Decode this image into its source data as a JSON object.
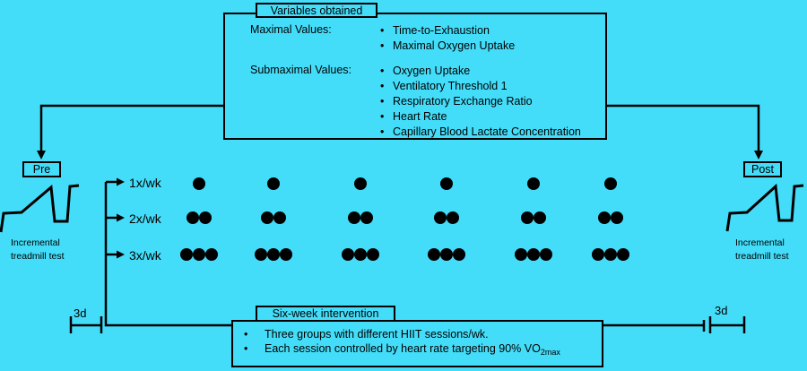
{
  "colors": {
    "background": "#44ddf9",
    "ink": "#000000"
  },
  "bullet_char": "•",
  "variables_box": {
    "title": "Variables obtained",
    "sections": [
      {
        "label": "Maximal Values:",
        "items": [
          "Time-to-Exhaustion",
          "Maximal Oxygen Uptake"
        ]
      },
      {
        "label": "Submaximal Values:",
        "items": [
          "Oxygen Uptake",
          "Ventilatory Threshold 1",
          "Respiratory Exchange Ratio",
          "Heart Rate",
          "Capillary Blood Lactate Concentration"
        ]
      }
    ]
  },
  "pre_label": "Pre",
  "post_label": "Post",
  "treadmill_caption": {
    "line1": "Incremental",
    "line2": "treadmill test"
  },
  "schedule": {
    "weeks": 6,
    "rows": [
      {
        "label": "1x/wk",
        "sessions_per_week": 1
      },
      {
        "label": "2x/wk",
        "sessions_per_week": 2
      },
      {
        "label": "3x/wk",
        "sessions_per_week": 3
      }
    ]
  },
  "intervention_box": {
    "title": "Six-week intervention",
    "bullet1": "Three groups with different HIIT sessions/wk.",
    "bullet2_main": "Each session controlled by heart rate targeting 90% VO",
    "bullet2_sub": "2max"
  },
  "interval_labels": {
    "left": "3d",
    "right": "3d"
  }
}
